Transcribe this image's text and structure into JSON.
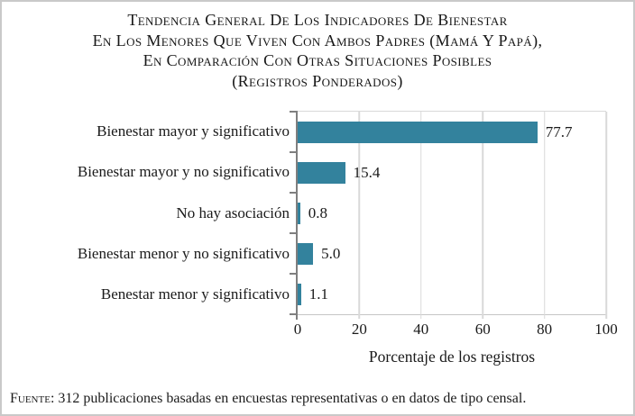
{
  "chart_data": {
    "type": "bar",
    "orientation": "horizontal",
    "title": "Tendencia General De Los Indicadores De Bienestar En Los Menores Que Viven Con Ambos Padres (Mamá Y Papá), En Comparación Con Otras Situaciones Posibles (Registros Ponderados)",
    "title_lines": [
      "Tendencia General De Los Indicadores De Bienestar",
      "En Los Menores Que Viven Con Ambos Padres (Mamá Y Papá),",
      "En Comparación Con Otras Situaciones Posibles",
      "(Registros Ponderados)"
    ],
    "categories": [
      "Bienestar mayor y significativo",
      "Bienestar mayor y no significativo",
      "No hay asociación",
      "Bienestar menor y no significativo",
      "Benestar menor y significativo"
    ],
    "values": [
      77.7,
      15.4,
      0.8,
      5.0,
      1.1
    ],
    "value_labels": [
      "77.7",
      "15.4",
      "0.8",
      "5.0",
      "1.1"
    ],
    "xlabel": "Porcentaje de los registros",
    "ylabel": "",
    "xlim": [
      0,
      100
    ],
    "xticks": [
      0,
      20,
      40,
      60,
      80,
      100
    ],
    "grid": "vertical-only",
    "legend": "none",
    "bar_color": "#33829d",
    "gridline_color": "#d9d9d9",
    "axis_color": "#7f7f7f",
    "source_prefix": "Fuente:",
    "source_text": "312 publicaciones basadas en encuestas representativas o en datos de tipo censal."
  }
}
